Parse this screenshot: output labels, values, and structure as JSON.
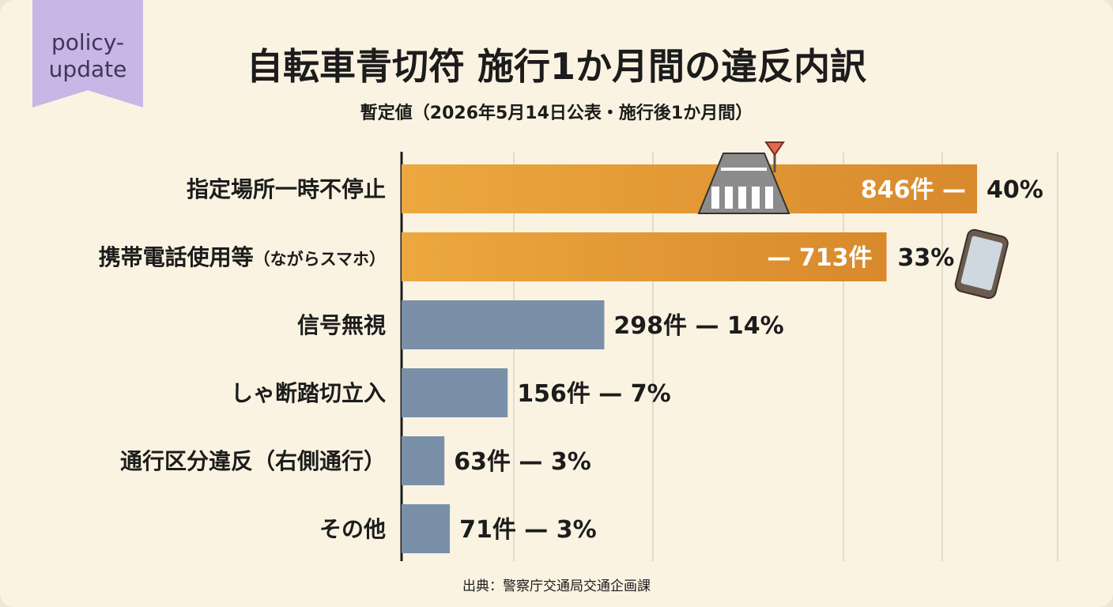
{
  "tag": {
    "line1": "policy-",
    "line2": "update"
  },
  "header": {
    "title": "自転車青切符 施行1か月間の違反内訳",
    "subtitle": "暫定値（2026年5月14日公表・施行後1か月間）"
  },
  "source": "出典：警察庁交通局交通企画課",
  "colors": {
    "highlight": "#e8a23c",
    "highlight_dark": "#d98d2e",
    "regular": "#7990a8",
    "axis": "#1c1c1c",
    "grid": "#dcd3c0"
  },
  "chart_data": {
    "type": "bar",
    "orientation": "horizontal",
    "title": "自転車青切符 施行1か月間の違反内訳",
    "subtitle": "暫定値（2026年5月14日公表・施行後1か月間）",
    "xlabel": "",
    "ylabel": "",
    "grid": true,
    "xlim": [
      0,
      1150
    ],
    "categories": [
      "指定場所一時不停止",
      "携帯電話使用等",
      "信号無視",
      "しゃ断踏切立入",
      "通行区分違反（右側通行）",
      "その他"
    ],
    "category_suffixes": [
      "",
      "（ながらスマホ）",
      "",
      "",
      "",
      ""
    ],
    "values": [
      846,
      713,
      298,
      156,
      63,
      71
    ],
    "percents": [
      "40%",
      "33%",
      "14%",
      "7%",
      "3%",
      "3%"
    ],
    "value_labels": [
      "846件 —",
      "— 713件",
      "298件 — 14%",
      "156件 — 7%",
      "63件 — 3%",
      "71件 — 3%"
    ],
    "highlighted": [
      true,
      true,
      false,
      false,
      false,
      false
    ],
    "icons": [
      "crosswalk-stop-sign-icon",
      "smartphone-icon",
      "",
      "",
      "",
      ""
    ]
  }
}
